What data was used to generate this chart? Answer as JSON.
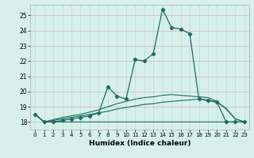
{
  "xlabel": "Humidex (Indice chaleur)",
  "xlim": [
    -0.5,
    23.5
  ],
  "ylim": [
    17.5,
    25.7
  ],
  "xticks": [
    0,
    1,
    2,
    3,
    4,
    5,
    6,
    7,
    8,
    9,
    10,
    11,
    12,
    13,
    14,
    15,
    16,
    17,
    18,
    19,
    20,
    21,
    22,
    23
  ],
  "yticks": [
    18,
    19,
    20,
    21,
    22,
    23,
    24,
    25
  ],
  "background_color": "#d8f0ec",
  "grid_color_x": "#b8ddd8",
  "grid_color_y": "#d0b0b0",
  "line_color": "#1a6b60",
  "main_line": [
    18.5,
    18.0,
    18.0,
    18.1,
    18.2,
    18.3,
    18.4,
    18.6,
    20.3,
    19.7,
    19.5,
    22.1,
    22.0,
    22.5,
    25.4,
    24.2,
    24.1,
    23.8,
    19.5,
    19.4,
    19.3,
    18.0,
    18.0,
    18.0
  ],
  "line_flat": [
    18.5,
    18.0,
    18.0,
    18.0,
    18.0,
    18.0,
    18.0,
    18.0,
    18.0,
    18.0,
    18.0,
    18.0,
    18.0,
    18.0,
    18.0,
    18.0,
    18.0,
    18.0,
    18.0,
    18.0,
    18.0,
    18.0,
    18.0,
    18.0
  ],
  "line_slow": [
    18.5,
    18.0,
    18.1,
    18.2,
    18.3,
    18.4,
    18.5,
    18.6,
    18.7,
    18.85,
    18.95,
    19.05,
    19.15,
    19.2,
    19.3,
    19.35,
    19.4,
    19.45,
    19.5,
    19.45,
    19.3,
    18.9,
    18.2,
    18.0
  ],
  "line_mid": [
    18.5,
    18.0,
    18.15,
    18.3,
    18.4,
    18.5,
    18.65,
    18.8,
    19.0,
    19.2,
    19.35,
    19.5,
    19.6,
    19.65,
    19.75,
    19.8,
    19.75,
    19.7,
    19.65,
    19.6,
    19.35,
    18.85,
    18.2,
    18.0
  ]
}
